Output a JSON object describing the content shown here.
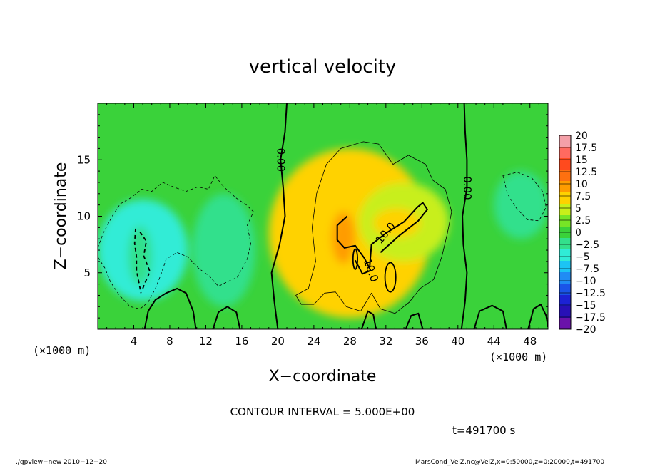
{
  "chart_data": {
    "type": "heatmap",
    "title": "vertical velocity",
    "xlabel": "X−coordinate",
    "ylabel": "Z−coordinate",
    "x_unit": "(×1000 m)",
    "z_unit": "(×1000 m)",
    "xlim": [
      0,
      50
    ],
    "ylim": [
      0,
      20
    ],
    "x_ticks": [
      4,
      8,
      12,
      16,
      20,
      24,
      28,
      32,
      36,
      40,
      44,
      48
    ],
    "x_tick_labels": [
      "4",
      "8",
      "12",
      "16",
      "20",
      "24",
      "28",
      "32",
      "36",
      "40",
      "44",
      "48"
    ],
    "y_ticks": [
      5,
      10,
      15
    ],
    "y_tick_labels": [
      "5",
      "10",
      "15"
    ],
    "background_color": "#3ad23a",
    "features": [
      {
        "x": 28,
        "z": 8.5,
        "rx": 9,
        "rz": 7.5,
        "value": 6.5
      },
      {
        "x": 34,
        "z": 9.5,
        "rx": 5,
        "rz": 3.5,
        "value": 3.5
      },
      {
        "x": 27.3,
        "z": 8.1,
        "rx": 1.3,
        "rz": 2.3,
        "value": 9.5
      },
      {
        "x": 29.3,
        "z": 6.2,
        "rx": 1.2,
        "rz": 1.6,
        "value": 5
      },
      {
        "x": 33.2,
        "z": 9.4,
        "rx": 2.6,
        "rz": 1.3,
        "value": 6
      },
      {
        "x": 32.5,
        "z": 4.3,
        "rx": 0.8,
        "rz": 1.2,
        "value": 5
      },
      {
        "x": 5,
        "z": 7,
        "rx": 5,
        "rz": 4.5,
        "value": -6
      },
      {
        "x": 4.7,
        "z": 6.5,
        "rx": 1.3,
        "rz": 2.6,
        "value": -4.5
      },
      {
        "x": 14,
        "z": 7,
        "rx": 3.5,
        "rz": 5,
        "value": -3
      },
      {
        "x": 47,
        "z": 11,
        "rx": 3,
        "rz": 3,
        "value": -3.5
      }
    ],
    "contours": {
      "zero_lines": [
        {
          "label": "0.00",
          "points": [
            [
              20,
              0
            ],
            [
              19.6,
              2.5
            ],
            [
              19.3,
              5
            ],
            [
              20.2,
              7.5
            ],
            [
              20.8,
              10
            ],
            [
              20.6,
              12.5
            ],
            [
              20.3,
              15
            ],
            [
              20.8,
              17.5
            ],
            [
              21,
              20
            ]
          ]
        },
        {
          "label": "0.00",
          "points": [
            [
              40.4,
              0
            ],
            [
              40.8,
              2.5
            ],
            [
              41,
              5
            ],
            [
              40.6,
              7.5
            ],
            [
              40.5,
              10
            ],
            [
              41,
              12.5
            ],
            [
              41,
              15
            ],
            [
              40.8,
              17.5
            ],
            [
              40.7,
              20
            ]
          ]
        }
      ],
      "ten_lines": [
        {
          "label": "10.0",
          "points": [
            [
              27.7,
              10
            ],
            [
              26.6,
              9.2
            ],
            [
              26.6,
              7.9
            ],
            [
              27.4,
              7.2
            ],
            [
              28.6,
              7.4
            ],
            [
              29.6,
              6.3
            ],
            [
              30.3,
              5.2
            ],
            [
              29.4,
              4.9
            ],
            [
              28.6,
              6.1
            ]
          ]
        },
        {
          "label": "10.0",
          "points": [
            [
              30.2,
              5.5
            ],
            [
              30.4,
              7.5
            ],
            [
              32,
              8.5
            ],
            [
              34,
              9.5
            ],
            [
              35.5,
              10.8
            ],
            [
              36.1,
              11.2
            ],
            [
              36.6,
              10.6
            ],
            [
              35.6,
              9.6
            ],
            [
              33.5,
              8.3
            ],
            [
              31.4,
              6.8
            ]
          ]
        }
      ],
      "negative_lines": [
        {
          "points": [
            [
              4.7,
              8.6
            ],
            [
              5.4,
              7.8
            ],
            [
              5.1,
              6.5
            ],
            [
              5.8,
              5.1
            ],
            [
              5.3,
              4.2
            ],
            [
              4.9,
              3.4
            ]
          ]
        },
        {
          "points": [
            [
              4.2,
              8.9
            ],
            [
              4.1,
              7.6
            ],
            [
              4.3,
              6.4
            ],
            [
              4.3,
              5.2
            ],
            [
              4.6,
              4.0
            ],
            [
              4.8,
              3.2
            ]
          ]
        },
        {
          "points": [
            [
              0,
              7.2
            ],
            [
              0.6,
              8.5
            ],
            [
              1.6,
              10
            ],
            [
              2.5,
              11.1
            ],
            [
              3.6,
              11.6
            ],
            [
              4.9,
              12.4
            ],
            [
              6,
              12.2
            ],
            [
              7.2,
              13
            ],
            [
              8.4,
              12.6
            ],
            [
              9.8,
              12.2
            ],
            [
              11.1,
              12.6
            ],
            [
              12.3,
              12.4
            ],
            [
              13,
              13.6
            ],
            [
              14,
              12.6
            ],
            [
              15.4,
              11.6
            ],
            [
              16.5,
              11
            ],
            [
              17.3,
              10.4
            ],
            [
              16.6,
              9.2
            ],
            [
              17,
              7.6
            ],
            [
              16.6,
              6.2
            ],
            [
              15.5,
              4.6
            ],
            [
              14.4,
              4.2
            ],
            [
              13.4,
              3.8
            ],
            [
              12.4,
              4.7
            ],
            [
              11.2,
              5.4
            ],
            [
              10,
              6.4
            ],
            [
              8.8,
              6.8
            ],
            [
              7.6,
              6.2
            ],
            [
              7,
              4.8
            ],
            [
              6.4,
              3.6
            ],
            [
              5.6,
              2.4
            ],
            [
              4.7,
              1.8
            ],
            [
              3.6,
              2
            ],
            [
              2.4,
              3
            ],
            [
              1.4,
              4.2
            ],
            [
              0.8,
              5.4
            ],
            [
              0,
              6.4
            ]
          ]
        },
        {
          "points": [
            [
              45,
              13.6
            ],
            [
              46.6,
              13.9
            ],
            [
              48.2,
              13.4
            ],
            [
              49.4,
              12.2
            ],
            [
              49.8,
              10.8
            ],
            [
              49,
              9.6
            ],
            [
              47.7,
              9.7
            ],
            [
              46.4,
              10.8
            ],
            [
              45.5,
              12
            ]
          ]
        }
      ],
      "five_lines": [
        {
          "points": [
            [
              22,
              3
            ],
            [
              23.4,
              3.6
            ],
            [
              24.2,
              6
            ],
            [
              23.8,
              9
            ],
            [
              24.3,
              12
            ],
            [
              25.4,
              14.6
            ],
            [
              27,
              16
            ],
            [
              29.5,
              16.6
            ],
            [
              31.2,
              16.4
            ],
            [
              32.8,
              14.6
            ],
            [
              34.5,
              15.4
            ],
            [
              36.4,
              14.6
            ],
            [
              37.2,
              13.2
            ],
            [
              38.6,
              12.4
            ],
            [
              39.3,
              10.4
            ],
            [
              38.8,
              8.4
            ],
            [
              38.2,
              6.4
            ],
            [
              37.3,
              4.4
            ],
            [
              35.8,
              3.6
            ],
            [
              34.6,
              2.4
            ],
            [
              33,
              1.4
            ],
            [
              31.4,
              1.8
            ],
            [
              30.4,
              3.2
            ],
            [
              29.2,
              1.6
            ],
            [
              27.6,
              2
            ],
            [
              26.4,
              3.3
            ],
            [
              25.2,
              3.2
            ],
            [
              24,
              2.2
            ],
            [
              22.6,
              2.2
            ]
          ]
        }
      ],
      "ground_lines": [
        {
          "points": [
            [
              5.2,
              0
            ],
            [
              5.6,
              1.6
            ],
            [
              6.4,
              2.6
            ],
            [
              7.6,
              3.2
            ],
            [
              8.8,
              3.6
            ],
            [
              9.8,
              3.2
            ],
            [
              10.6,
              1.6
            ],
            [
              10.9,
              0
            ]
          ]
        },
        {
          "points": [
            [
              12.8,
              0
            ],
            [
              13.4,
              1.5
            ],
            [
              14.4,
              2
            ],
            [
              15.4,
              1.5
            ],
            [
              15.8,
              0
            ]
          ]
        },
        {
          "points": [
            [
              41.8,
              0
            ],
            [
              42.4,
              1.6
            ],
            [
              43.8,
              2.1
            ],
            [
              45,
              1.6
            ],
            [
              45.4,
              0
            ]
          ]
        },
        {
          "points": [
            [
              47.8,
              0
            ],
            [
              48.4,
              1.8
            ],
            [
              49.2,
              2.2
            ],
            [
              49.8,
              1.2
            ],
            [
              50,
              0.2
            ]
          ]
        },
        {
          "points": [
            [
              29.3,
              0
            ],
            [
              30,
              1.6
            ],
            [
              30.6,
              1.3
            ],
            [
              30.9,
              0
            ]
          ]
        },
        {
          "points": [
            [
              34.2,
              0
            ],
            [
              34.8,
              1.2
            ],
            [
              35.6,
              1.4
            ],
            [
              36.1,
              0
            ]
          ]
        }
      ],
      "small_loops": [
        {
          "x": 28.6,
          "z": 6.2,
          "rx": 0.25,
          "rz": 0.9,
          "value": 10
        },
        {
          "x": 32.5,
          "z": 4.6,
          "rx": 0.6,
          "rz": 1.3,
          "value": 10
        }
      ]
    },
    "colorbar": {
      "levels": [
        20,
        17.5,
        15,
        12.5,
        10,
        7.5,
        5,
        2.5,
        0,
        -2.5,
        -5,
        -7.5,
        -10,
        -12.5,
        -15,
        -17.5,
        -20
      ],
      "labels": [
        "20",
        "17.5",
        "15",
        "12.5",
        "10",
        "7.5",
        "5",
        "2.5",
        "0",
        "−2.5",
        "−5",
        "−7.5",
        "−10",
        "−12.5",
        "−15",
        "−17.5",
        "−20"
      ],
      "colors": [
        "#f4a0a8",
        "#ff6a60",
        "#ff4a1e",
        "#fe7010",
        "#ff9c00",
        "#ffd200",
        "#c8ef1a",
        "#76e526",
        "#3ad23a",
        "#33e08c",
        "#30ecd6",
        "#1cc4f4",
        "#208cf4",
        "#1a54e8",
        "#1c22d4",
        "#2810b6",
        "#6a12aa"
      ]
    }
  },
  "info": {
    "contour_interval": "CONTOUR INTERVAL = 5.000E+00",
    "time": "t=491700 s",
    "footer_left": "./gpview−new   2010−12−20",
    "footer_right": "MarsCond_VelZ.nc@VelZ,x=0:50000,z=0:20000,t=491700"
  }
}
